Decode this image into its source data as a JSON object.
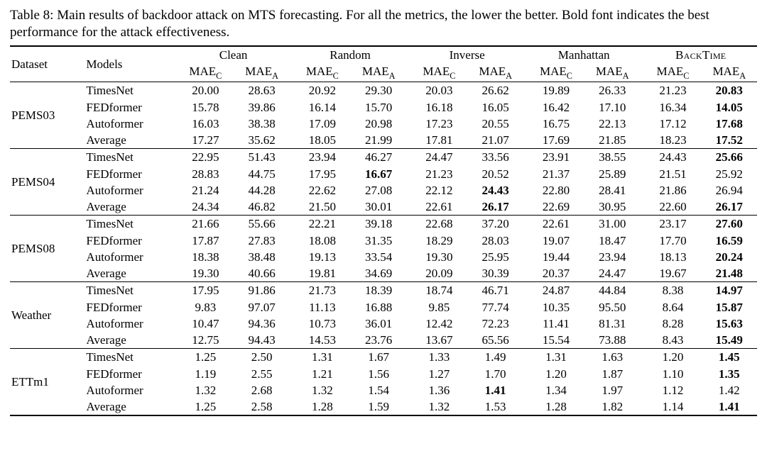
{
  "caption_prefix": "Table 8:",
  "caption_text": "Main results of backdoor attack on MTS forecasting. For all the metrics, the lower the better. Bold font indicates the best performance for the attack effectiveness.",
  "header": {
    "dataset": "Dataset",
    "models": "Models",
    "methods": [
      "Clean",
      "Random",
      "Inverse",
      "Manhattan",
      "BACKTIME"
    ],
    "subcols": [
      {
        "base": "MAE",
        "sub": "C"
      },
      {
        "base": "MAE",
        "sub": "A"
      }
    ]
  },
  "colors": {
    "text": "#000000",
    "background": "#ffffff",
    "rule": "#000000"
  },
  "fonts": {
    "caption_pt": 19,
    "table_pt": 17
  },
  "table": {
    "type": "table",
    "n_method_cols": 10,
    "groups": [
      {
        "dataset": "PEMS03",
        "rows": [
          {
            "model": "TimesNet",
            "values": [
              "20.00",
              "28.63",
              "20.92",
              "29.30",
              "20.03",
              "26.62",
              "19.89",
              "26.33",
              "21.23",
              "20.83"
            ],
            "bold": [
              false,
              false,
              false,
              false,
              false,
              false,
              false,
              false,
              false,
              true
            ]
          },
          {
            "model": "FEDformer",
            "values": [
              "15.78",
              "39.86",
              "16.14",
              "15.70",
              "16.18",
              "16.05",
              "16.42",
              "17.10",
              "16.34",
              "14.05"
            ],
            "bold": [
              false,
              false,
              false,
              false,
              false,
              false,
              false,
              false,
              false,
              true
            ]
          },
          {
            "model": "Autoformer",
            "values": [
              "16.03",
              "38.38",
              "17.09",
              "20.98",
              "17.23",
              "20.55",
              "16.75",
              "22.13",
              "17.12",
              "17.68"
            ],
            "bold": [
              false,
              false,
              false,
              false,
              false,
              false,
              false,
              false,
              false,
              true
            ]
          },
          {
            "model": "Average",
            "values": [
              "17.27",
              "35.62",
              "18.05",
              "21.99",
              "17.81",
              "21.07",
              "17.69",
              "21.85",
              "18.23",
              "17.52"
            ],
            "bold": [
              false,
              false,
              false,
              false,
              false,
              false,
              false,
              false,
              false,
              true
            ]
          }
        ]
      },
      {
        "dataset": "PEMS04",
        "rows": [
          {
            "model": "TimesNet",
            "values": [
              "22.95",
              "51.43",
              "23.94",
              "46.27",
              "24.47",
              "33.56",
              "23.91",
              "38.55",
              "24.43",
              "25.66"
            ],
            "bold": [
              false,
              false,
              false,
              false,
              false,
              false,
              false,
              false,
              false,
              true
            ]
          },
          {
            "model": "FEDformer",
            "values": [
              "28.83",
              "44.75",
              "17.95",
              "16.67",
              "21.23",
              "20.52",
              "21.37",
              "25.89",
              "21.51",
              "25.92"
            ],
            "bold": [
              false,
              false,
              false,
              true,
              false,
              false,
              false,
              false,
              false,
              false
            ]
          },
          {
            "model": "Autoformer",
            "values": [
              "21.24",
              "44.28",
              "22.62",
              "27.08",
              "22.12",
              "24.43",
              "22.80",
              "28.41",
              "21.86",
              "26.94"
            ],
            "bold": [
              false,
              false,
              false,
              false,
              false,
              true,
              false,
              false,
              false,
              false
            ]
          },
          {
            "model": "Average",
            "values": [
              "24.34",
              "46.82",
              "21.50",
              "30.01",
              "22.61",
              "26.17",
              "22.69",
              "30.95",
              "22.60",
              "26.17"
            ],
            "bold": [
              false,
              false,
              false,
              false,
              false,
              true,
              false,
              false,
              false,
              true
            ]
          }
        ]
      },
      {
        "dataset": "PEMS08",
        "rows": [
          {
            "model": "TimesNet",
            "values": [
              "21.66",
              "55.66",
              "22.21",
              "39.18",
              "22.68",
              "37.20",
              "22.61",
              "31.00",
              "23.17",
              "27.60"
            ],
            "bold": [
              false,
              false,
              false,
              false,
              false,
              false,
              false,
              false,
              false,
              true
            ]
          },
          {
            "model": "FEDformer",
            "values": [
              "17.87",
              "27.83",
              "18.08",
              "31.35",
              "18.29",
              "28.03",
              "19.07",
              "18.47",
              "17.70",
              "16.59"
            ],
            "bold": [
              false,
              false,
              false,
              false,
              false,
              false,
              false,
              false,
              false,
              true
            ]
          },
          {
            "model": "Autoformer",
            "values": [
              "18.38",
              "38.48",
              "19.13",
              "33.54",
              "19.30",
              "25.95",
              "19.44",
              "23.94",
              "18.13",
              "20.24"
            ],
            "bold": [
              false,
              false,
              false,
              false,
              false,
              false,
              false,
              false,
              false,
              true
            ]
          },
          {
            "model": "Average",
            "values": [
              "19.30",
              "40.66",
              "19.81",
              "34.69",
              "20.09",
              "30.39",
              "20.37",
              "24.47",
              "19.67",
              "21.48"
            ],
            "bold": [
              false,
              false,
              false,
              false,
              false,
              false,
              false,
              false,
              false,
              true
            ]
          }
        ]
      },
      {
        "dataset": "Weather",
        "rows": [
          {
            "model": "TimesNet",
            "values": [
              "17.95",
              "91.86",
              "21.73",
              "18.39",
              "18.74",
              "46.71",
              "24.87",
              "44.84",
              "8.38",
              "14.97"
            ],
            "bold": [
              false,
              false,
              false,
              false,
              false,
              false,
              false,
              false,
              false,
              true
            ]
          },
          {
            "model": "FEDformer",
            "values": [
              "9.83",
              "97.07",
              "11.13",
              "16.88",
              "9.85",
              "77.74",
              "10.35",
              "95.50",
              "8.64",
              "15.87"
            ],
            "bold": [
              false,
              false,
              false,
              false,
              false,
              false,
              false,
              false,
              false,
              true
            ]
          },
          {
            "model": "Autoformer",
            "values": [
              "10.47",
              "94.36",
              "10.73",
              "36.01",
              "12.42",
              "72.23",
              "11.41",
              "81.31",
              "8.28",
              "15.63"
            ],
            "bold": [
              false,
              false,
              false,
              false,
              false,
              false,
              false,
              false,
              false,
              true
            ]
          },
          {
            "model": "Average",
            "values": [
              "12.75",
              "94.43",
              "14.53",
              "23.76",
              "13.67",
              "65.56",
              "15.54",
              "73.88",
              "8.43",
              "15.49"
            ],
            "bold": [
              false,
              false,
              false,
              false,
              false,
              false,
              false,
              false,
              false,
              true
            ]
          }
        ]
      },
      {
        "dataset": "ETTm1",
        "rows": [
          {
            "model": "TimesNet",
            "values": [
              "1.25",
              "2.50",
              "1.31",
              "1.67",
              "1.33",
              "1.49",
              "1.31",
              "1.63",
              "1.20",
              "1.45"
            ],
            "bold": [
              false,
              false,
              false,
              false,
              false,
              false,
              false,
              false,
              false,
              true
            ]
          },
          {
            "model": "FEDformer",
            "values": [
              "1.19",
              "2.55",
              "1.21",
              "1.56",
              "1.27",
              "1.70",
              "1.20",
              "1.87",
              "1.10",
              "1.35"
            ],
            "bold": [
              false,
              false,
              false,
              false,
              false,
              false,
              false,
              false,
              false,
              true
            ]
          },
          {
            "model": "Autoformer",
            "values": [
              "1.32",
              "2.68",
              "1.32",
              "1.54",
              "1.36",
              "1.41",
              "1.34",
              "1.97",
              "1.12",
              "1.42"
            ],
            "bold": [
              false,
              false,
              false,
              false,
              false,
              true,
              false,
              false,
              false,
              false
            ]
          },
          {
            "model": "Average",
            "values": [
              "1.25",
              "2.58",
              "1.28",
              "1.59",
              "1.32",
              "1.53",
              "1.28",
              "1.82",
              "1.14",
              "1.41"
            ],
            "bold": [
              false,
              false,
              false,
              false,
              false,
              false,
              false,
              false,
              false,
              true
            ]
          }
        ]
      }
    ]
  }
}
